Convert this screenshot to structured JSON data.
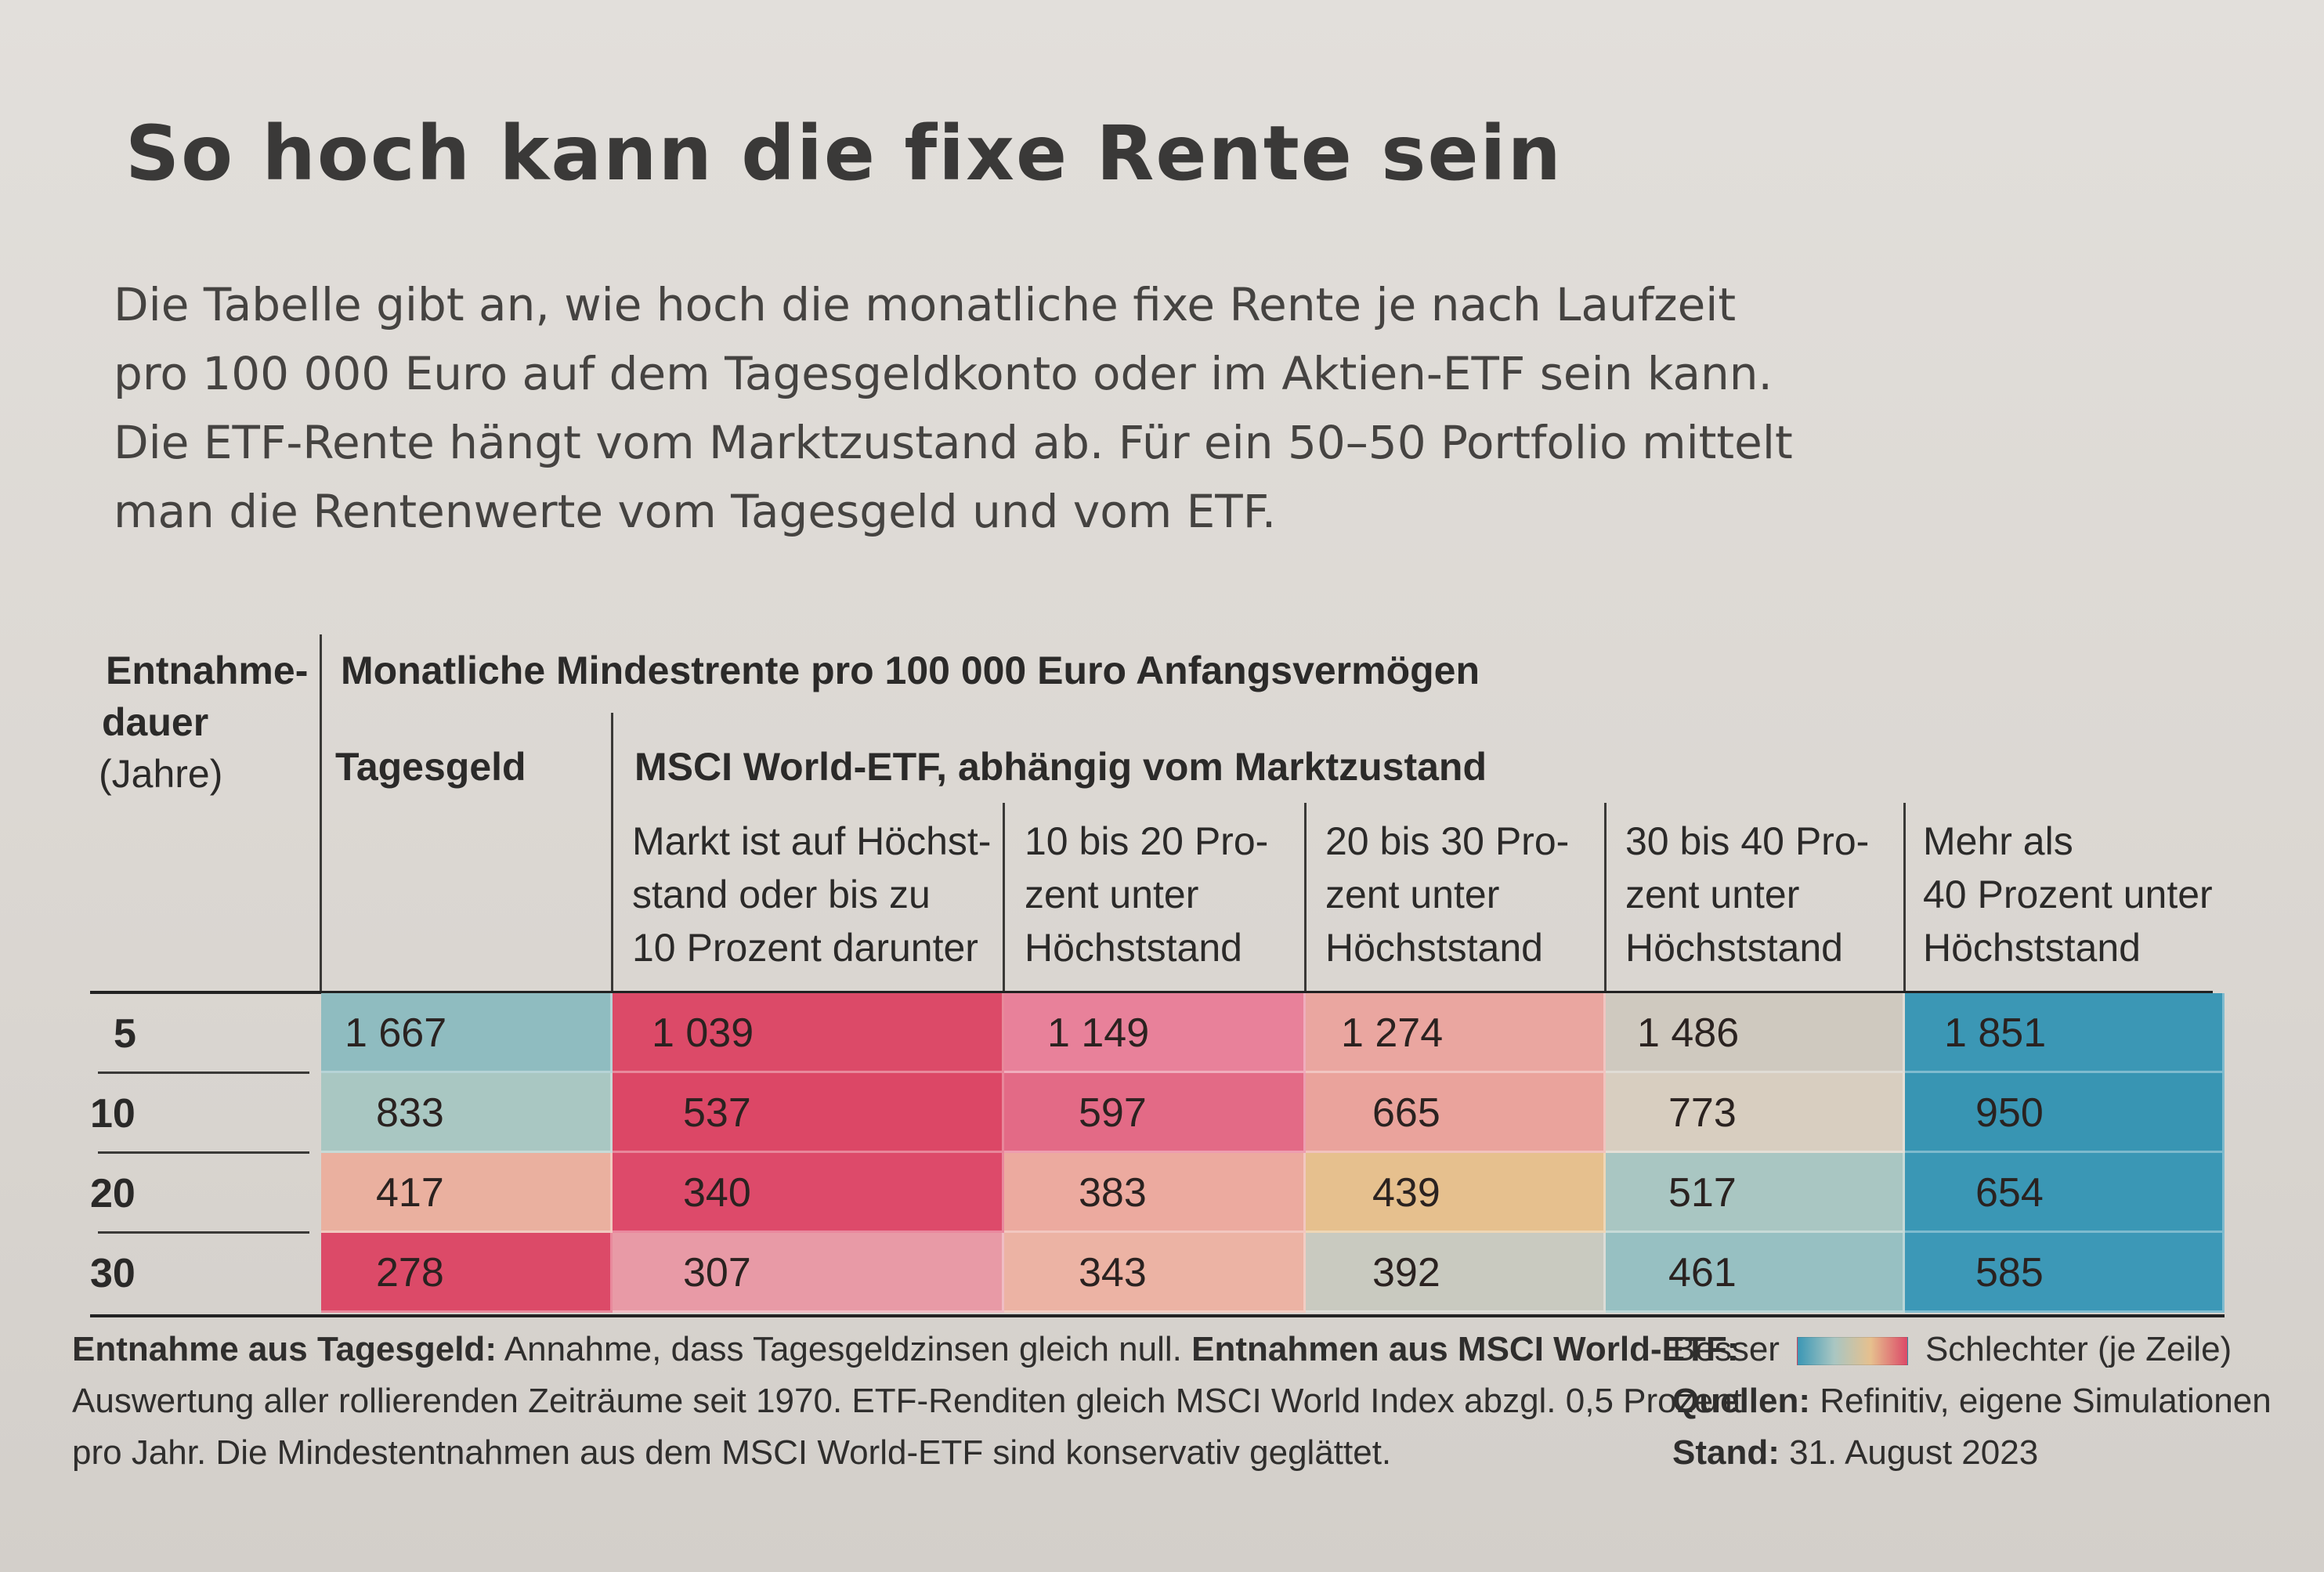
{
  "title": "So hoch kann die fixe Rente sein",
  "intro": [
    "Die Tabelle gibt an, wie hoch die monatliche fixe Rente je nach Laufzeit",
    "pro 100 000 Euro auf dem Tagesgeldkonto oder im Aktien-ETF sein kann.",
    "Die ETF-Rente hängt vom Marktzustand ab. Für ein 50–50 Portfolio mittelt",
    "man die Rentenwerte vom Tagesgeld und vom ETF."
  ],
  "table": {
    "row_header": [
      "Entnahme-",
      "dauer",
      "(Jahre)"
    ],
    "group_header": "Monatliche Mindestrente pro 100 000 Euro Anfangsvermögen",
    "col_tagesgeld": "Tagesgeld",
    "etf_header": "MSCI World-ETF, abhängig vom Marktzustand",
    "etf_cols": [
      [
        "Markt ist auf Höchst-",
        "stand oder bis zu",
        "10 Prozent darunter"
      ],
      [
        "10 bis 20 Pro-",
        "zent unter",
        "Höchststand"
      ],
      [
        "20 bis 30 Pro-",
        "zent unter",
        "Höchststand"
      ],
      [
        "30 bis 40 Pro-",
        "zent unter",
        "Höchststand"
      ],
      [
        "Mehr als",
        "40 Prozent unter",
        "Höchststand"
      ]
    ],
    "rows": [
      {
        "years": "5",
        "values": [
          "1 667",
          "1 039",
          "1 149",
          "1 274",
          "1 486",
          "1 851"
        ]
      },
      {
        "years": "10",
        "values": [
          "833",
          "537",
          "597",
          "665",
          "773",
          "950"
        ]
      },
      {
        "years": "20",
        "values": [
          "417",
          "340",
          "383",
          "439",
          "517",
          "654"
        ]
      },
      {
        "years": "30",
        "values": [
          "278",
          "307",
          "343",
          "392",
          "461",
          "585"
        ]
      }
    ],
    "cell_colors": [
      [
        "#8fbcc0",
        "#dc4a68",
        "#e8819a",
        "#eaa6a0",
        "#cfc9bf",
        "#3b97b5"
      ],
      [
        "#a9c7c2",
        "#dc4766",
        "#e36a86",
        "#eaa39c",
        "#d8cec0",
        "#3895b3"
      ],
      [
        "#eab09f",
        "#dd4a6a",
        "#ecaa9f",
        "#e6c08e",
        "#a9c6c2",
        "#3a97b5"
      ],
      [
        "#dc4a68",
        "#e89aa6",
        "#ecb3a4",
        "#c9cac0",
        "#97c0c2",
        "#3c98b7"
      ]
    ]
  },
  "footer": {
    "lines": [
      {
        "bold": "Entnahme aus Tagesgeld:",
        "text": " Annahme, dass Tagesgeldzinsen gleich null.  ",
        "bold2": "Entnahmen aus MSCI World-ETF:",
        "text2": ""
      },
      {
        "bold": "",
        "text": "Auswertung aller rollierenden Zeiträume seit 1970. ETF-Renditen gleich MSCI World Index abzgl. 0,5 Prozent",
        "bold2": "",
        "text2": ""
      },
      {
        "bold": "",
        "text": "pro Jahr. Die Mindestentnahmen aus dem MSCI World-ETF sind konservativ geglättet.",
        "bold2": "",
        "text2": ""
      }
    ]
  },
  "legend": {
    "better": "Besser",
    "worse": "Schlechter (je Zeile)",
    "sources_label": "Quellen:",
    "sources": " Refinitiv, eigene Simulationen",
    "date_label": "Stand:",
    "date": " 31. August 2023",
    "gradient": [
      "#3b97b5",
      "#a9c6c2",
      "#e6c08e",
      "#dc4a68"
    ]
  }
}
